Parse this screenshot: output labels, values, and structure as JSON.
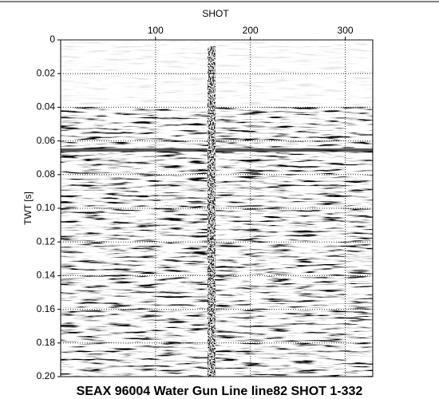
{
  "chart_data": {
    "type": "image",
    "title": "SEAX 96004 Water Gun Line line82 SHOT 1-332",
    "xlabel": "SHOT",
    "ylabel": "TWT [s]",
    "xlim": [
      0,
      329
    ],
    "xticks": [
      100,
      200,
      300
    ],
    "ylim": [
      0,
      0.2
    ],
    "yticks": [
      0,
      0.02,
      0.04,
      0.06,
      0.08,
      {
        "value": 0.1,
        "label": "0.10"
      },
      0.12,
      0.14,
      0.16,
      0.18,
      {
        "value": 0.2,
        "label": "0.20"
      }
    ],
    "grid": true
  }
}
